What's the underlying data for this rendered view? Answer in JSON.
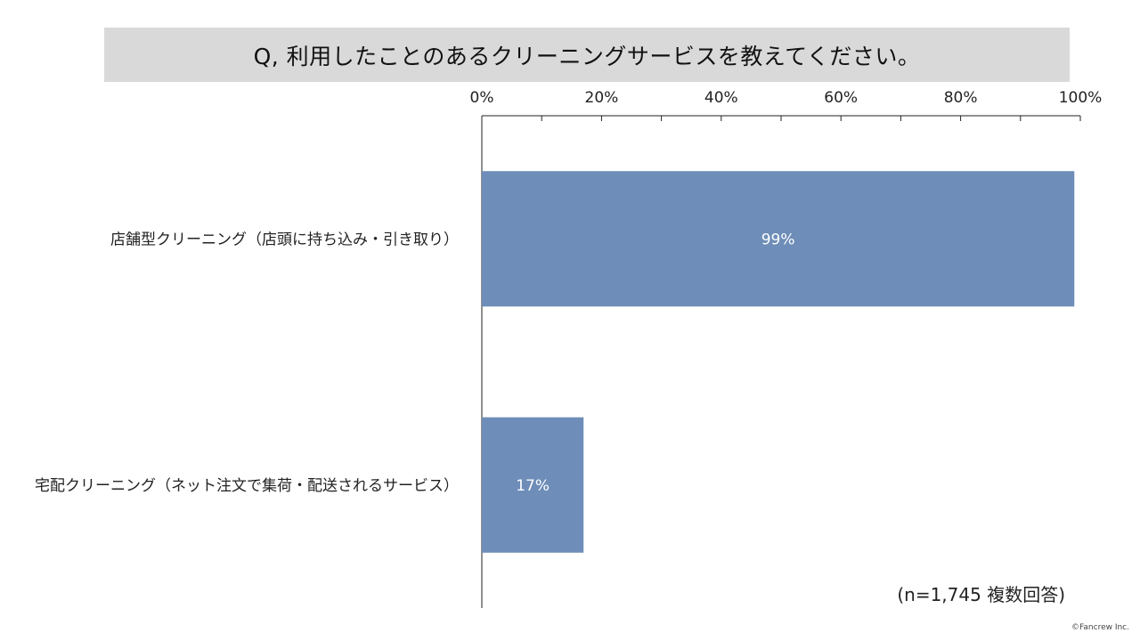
{
  "title": "Q, 利用したことのあるクリーニングサービスを教えてください。",
  "note": "(n=1,745 複数回答)",
  "credit": "©Fancrew Inc.",
  "colors": {
    "bar": "#6e8db8",
    "title_bg": "#d9d9d9",
    "axis": "#222222"
  },
  "chart_data": {
    "type": "bar",
    "orientation": "horizontal",
    "categories": [
      "店舗型クリーニング（店頭に持ち込み・引き取り）",
      "宅配クリーニング（ネット注文で集荷・配送されるサービス）"
    ],
    "values": [
      99,
      17
    ],
    "value_labels": [
      "99%",
      "17%"
    ],
    "xlim": [
      0,
      100
    ],
    "x_ticks": [
      0,
      20,
      40,
      60,
      80,
      100
    ],
    "x_tick_labels": [
      "0%",
      "20%",
      "40%",
      "60%",
      "80%",
      "100%"
    ],
    "x_axis_position": "top",
    "grid": false,
    "legend": "none"
  }
}
